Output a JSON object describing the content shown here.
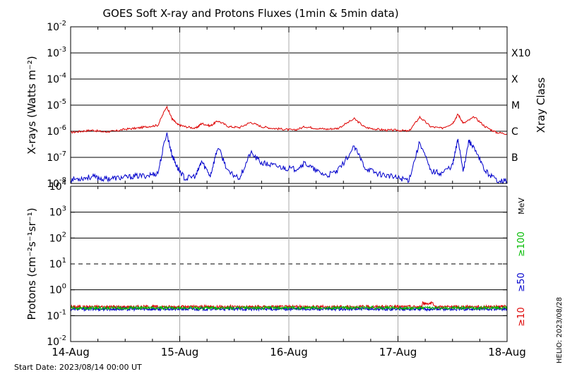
{
  "title": "GOES Soft X-ray and Protons Fluxes   (1min & 5min data)",
  "footer_start": "Start Date: 2023/08/14 00:00 UT",
  "footer_credit": "HELIO: 2023/08/28",
  "colors": {
    "xray_long": "#dd0000",
    "xray_short": "#0000cc",
    "proton_10": "#dd0000",
    "proton_50": "#0000cc",
    "proton_100": "#00bb00",
    "grid_h": "#000000",
    "grid_v": "#aaaaaa"
  },
  "chart_data": [
    {
      "type": "line",
      "ylabel": "X-rays (Watts m⁻²)",
      "log_scale": true,
      "ylim": [
        1e-08,
        0.01
      ],
      "ytick_labels": [
        {
          "base": "10",
          "exp": "-2"
        },
        {
          "base": "10",
          "exp": "-3"
        },
        {
          "base": "10",
          "exp": "-4"
        },
        {
          "base": "10",
          "exp": "-5"
        },
        {
          "base": "10",
          "exp": "-6"
        },
        {
          "base": "10",
          "exp": "-7"
        },
        {
          "base": "10",
          "exp": "-8"
        }
      ],
      "right_axis_title": "Xray Class",
      "right_labels": [
        "X10",
        "X",
        "M",
        "C",
        "B"
      ],
      "x_categories": [
        "14-Aug",
        "15-Aug",
        "16-Aug",
        "17-Aug",
        "18-Aug"
      ],
      "x_range_days": [
        0,
        4
      ],
      "series": [
        {
          "name": "xray_long",
          "points": [
            [
              0,
              9e-07
            ],
            [
              0.1,
              1e-06
            ],
            [
              0.2,
              1.1e-06
            ],
            [
              0.3,
              9.5e-07
            ],
            [
              0.4,
              1e-06
            ],
            [
              0.5,
              1.2e-06
            ],
            [
              0.6,
              1.3e-06
            ],
            [
              0.7,
              1.5e-06
            ],
            [
              0.8,
              1.7e-06
            ],
            [
              0.88,
              9e-06
            ],
            [
              0.93,
              3e-06
            ],
            [
              0.98,
              1.8e-06
            ],
            [
              1.05,
              1.5e-06
            ],
            [
              1.15,
              1.3e-06
            ],
            [
              1.2,
              2e-06
            ],
            [
              1.28,
              1.6e-06
            ],
            [
              1.35,
              2.5e-06
            ],
            [
              1.45,
              1.5e-06
            ],
            [
              1.55,
              1.4e-06
            ],
            [
              1.65,
              2.2e-06
            ],
            [
              1.75,
              1.5e-06
            ],
            [
              1.85,
              1.3e-06
            ],
            [
              1.95,
              1.2e-06
            ],
            [
              2.05,
              1.1e-06
            ],
            [
              2.15,
              1.5e-06
            ],
            [
              2.25,
              1.3e-06
            ],
            [
              2.35,
              1.2e-06
            ],
            [
              2.45,
              1.3e-06
            ],
            [
              2.6,
              3e-06
            ],
            [
              2.7,
              1.4e-06
            ],
            [
              2.8,
              1.2e-06
            ],
            [
              2.9,
              1.1e-06
            ],
            [
              3.0,
              1.1e-06
            ],
            [
              3.1,
              1e-06
            ],
            [
              3.2,
              3.5e-06
            ],
            [
              3.3,
              1.5e-06
            ],
            [
              3.4,
              1.3e-06
            ],
            [
              3.5,
              2e-06
            ],
            [
              3.55,
              4.5e-06
            ],
            [
              3.6,
              2e-06
            ],
            [
              3.7,
              3.5e-06
            ],
            [
              3.8,
              1.5e-06
            ],
            [
              3.9,
              9e-07
            ],
            [
              4.0,
              8e-07
            ]
          ]
        },
        {
          "name": "xray_short",
          "points": [
            [
              0,
              1.4e-08
            ],
            [
              0.1,
              1.6e-08
            ],
            [
              0.2,
              1.8e-08
            ],
            [
              0.3,
              1.5e-08
            ],
            [
              0.4,
              1.6e-08
            ],
            [
              0.5,
              1.7e-08
            ],
            [
              0.6,
              1.9e-08
            ],
            [
              0.7,
              2e-08
            ],
            [
              0.8,
              2.5e-08
            ],
            [
              0.88,
              9e-07
            ],
            [
              0.93,
              1.2e-07
            ],
            [
              0.98,
              4e-08
            ],
            [
              1.05,
              1.5e-08
            ],
            [
              1.15,
              2e-08
            ],
            [
              1.2,
              7e-08
            ],
            [
              1.28,
              2e-08
            ],
            [
              1.35,
              2.5e-07
            ],
            [
              1.45,
              2.5e-08
            ],
            [
              1.55,
              1.7e-08
            ],
            [
              1.65,
              1.5e-07
            ],
            [
              1.75,
              6e-08
            ],
            [
              1.85,
              5e-08
            ],
            [
              1.95,
              4e-08
            ],
            [
              2.05,
              3.5e-08
            ],
            [
              2.15,
              6e-08
            ],
            [
              2.25,
              3e-08
            ],
            [
              2.35,
              2e-08
            ],
            [
              2.45,
              3e-08
            ],
            [
              2.6,
              2.5e-07
            ],
            [
              2.7,
              4e-08
            ],
            [
              2.8,
              2.5e-08
            ],
            [
              2.9,
              2e-08
            ],
            [
              3.0,
              1.6e-08
            ],
            [
              3.1,
              1.4e-08
            ],
            [
              3.2,
              4e-07
            ],
            [
              3.3,
              3e-08
            ],
            [
              3.4,
              2.5e-08
            ],
            [
              3.5,
              5e-08
            ],
            [
              3.55,
              5e-07
            ],
            [
              3.6,
              3e-08
            ],
            [
              3.65,
              4.5e-07
            ],
            [
              3.7,
              2e-07
            ],
            [
              3.8,
              3e-08
            ],
            [
              3.9,
              1.4e-08
            ],
            [
              4.0,
              1.2e-08
            ]
          ]
        }
      ]
    },
    {
      "type": "line",
      "ylabel": "Protons (cm⁻²s⁻¹sr⁻¹)",
      "log_scale": true,
      "ylim": [
        0.01,
        10000
      ],
      "ytick_labels": [
        {
          "base": "10",
          "exp": "4"
        },
        {
          "base": "10",
          "exp": "3"
        },
        {
          "base": "10",
          "exp": "2"
        },
        {
          "base": "10",
          "exp": "1"
        },
        {
          "base": "10",
          "exp": "0"
        },
        {
          "base": "10",
          "exp": "-1"
        },
        {
          "base": "10",
          "exp": "-2"
        }
      ],
      "threshold_line": 10,
      "right_labels": {
        "unit": "MeV",
        "p100": "≥100",
        "p50": "≥50",
        "p10": "≥10"
      },
      "x_categories": [
        "14-Aug",
        "15-Aug",
        "16-Aug",
        "17-Aug",
        "18-Aug"
      ],
      "x_range_days": [
        0,
        4
      ],
      "series": [
        {
          "name": "p10",
          "level": 0.22,
          "bump": {
            "from": 3.22,
            "to": 3.32,
            "level": 0.3
          }
        },
        {
          "name": "p50",
          "level": 0.18
        },
        {
          "name": "p100",
          "level": 0.2
        }
      ]
    }
  ]
}
